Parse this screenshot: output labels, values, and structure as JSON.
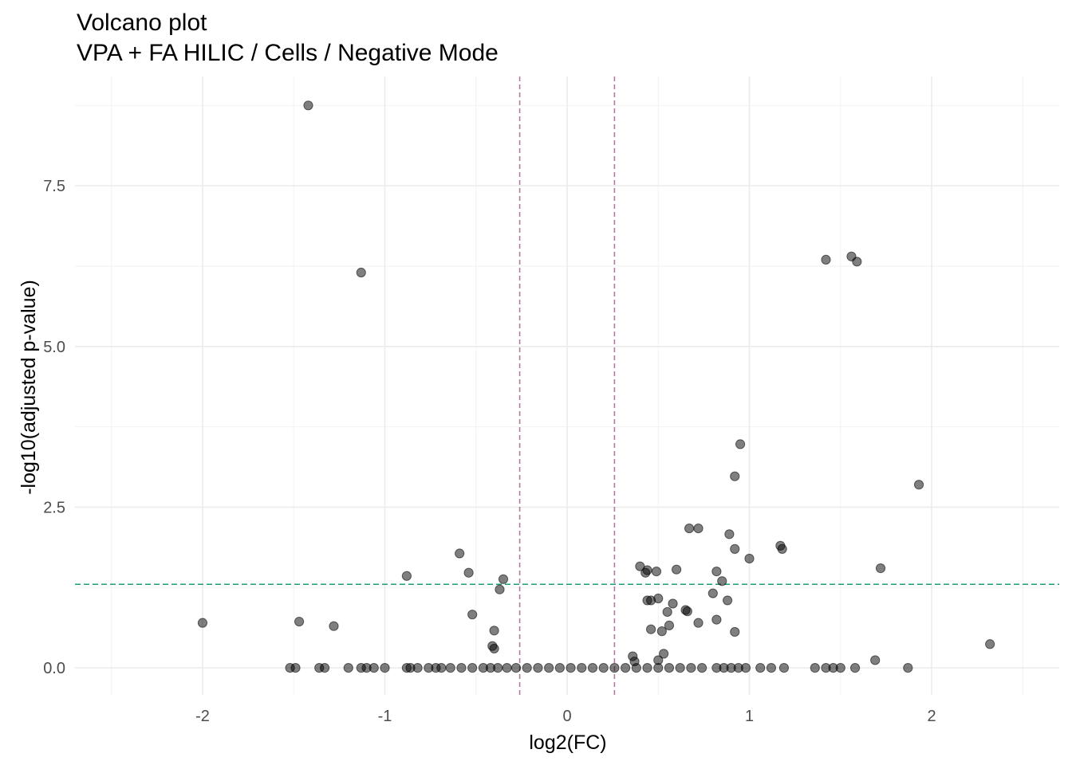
{
  "chart_data": {
    "type": "scatter",
    "title": "Volcano plot",
    "subtitle": "VPA + FA HILIC / Cells / Negative Mode",
    "xlabel": "log2(FC)",
    "ylabel": "-log10(adjusted p-value)",
    "xlim": [
      -2.7,
      2.7
    ],
    "ylim": [
      -0.42,
      9.2
    ],
    "xticks": [
      -2,
      -1,
      0,
      1,
      2
    ],
    "xtick_labels": [
      "-2",
      "-1",
      "0",
      "1",
      "2"
    ],
    "yticks": [
      0,
      2.5,
      5,
      7.5
    ],
    "ytick_labels": [
      "0.0",
      "2.5",
      "5.0",
      "7.5"
    ],
    "grid": true,
    "legend": "none",
    "threshold_lines": {
      "vertical": [
        -0.26,
        0.26
      ],
      "horizontal": 1.3,
      "vertical_color": "#b07aa1",
      "horizontal_color": "#1b9e77"
    },
    "point_color": "#000000",
    "x": [
      -1.42,
      -1.13,
      -2.0,
      -1.47,
      -1.28,
      -0.88,
      -0.59,
      -0.54,
      -0.35,
      -0.37,
      -0.52,
      -0.4,
      -0.41,
      -0.4,
      1.42,
      1.56,
      1.59,
      0.95,
      0.92,
      1.93,
      0.67,
      0.72,
      0.89,
      0.92,
      1.17,
      1.18,
      1.0,
      0.4,
      0.43,
      0.44,
      0.49,
      0.6,
      0.82,
      0.85,
      1.72,
      0.8,
      0.44,
      0.46,
      0.5,
      0.88,
      0.58,
      0.55,
      0.65,
      0.66,
      0.56,
      0.46,
      0.52,
      0.72,
      0.82,
      0.92,
      0.53,
      0.5,
      0.36,
      0.37,
      1.69,
      2.32,
      -1.52,
      -1.49,
      -1.36,
      -1.33,
      -1.2,
      -1.13,
      -1.1,
      -1.06,
      -1.0,
      -0.88,
      -0.86,
      -0.82,
      -0.76,
      -0.72,
      -0.69,
      -0.64,
      -0.58,
      -0.52,
      -0.46,
      -0.42,
      -0.38,
      -0.33,
      -0.28,
      -0.22,
      -0.16,
      -0.1,
      -0.04,
      0.02,
      0.08,
      0.14,
      0.2,
      0.26,
      0.32,
      0.38,
      0.44,
      0.5,
      0.56,
      0.62,
      0.68,
      0.74,
      0.82,
      0.86,
      0.9,
      0.94,
      0.98,
      1.06,
      1.12,
      1.19,
      1.36,
      1.42,
      1.46,
      1.5,
      1.58,
      1.87
    ],
    "y": [
      8.75,
      6.15,
      0.7,
      0.72,
      0.65,
      1.43,
      1.78,
      1.48,
      1.38,
      1.22,
      0.83,
      0.58,
      0.34,
      0.3,
      6.35,
      6.4,
      6.32,
      3.48,
      2.98,
      2.85,
      2.17,
      2.17,
      2.08,
      1.85,
      1.9,
      1.85,
      1.7,
      1.58,
      1.48,
      1.52,
      1.5,
      1.53,
      1.5,
      1.35,
      1.55,
      1.16,
      1.05,
      1.05,
      1.08,
      1.05,
      1.0,
      0.87,
      0.9,
      0.88,
      0.66,
      0.6,
      0.57,
      0.7,
      0.75,
      0.56,
      0.22,
      0.12,
      0.18,
      0.1,
      0.12,
      0.37,
      0,
      0,
      0,
      0,
      0,
      0,
      0,
      0,
      0,
      0,
      0,
      0,
      0,
      0,
      0,
      0,
      0,
      0,
      0,
      0,
      0,
      0,
      0,
      0,
      0,
      0,
      0,
      0,
      0,
      0,
      0,
      0,
      0,
      0,
      0,
      0,
      0,
      0,
      0,
      0,
      0,
      0,
      0,
      0,
      0,
      0,
      0,
      0,
      0,
      0,
      0,
      0,
      0,
      0
    ]
  }
}
